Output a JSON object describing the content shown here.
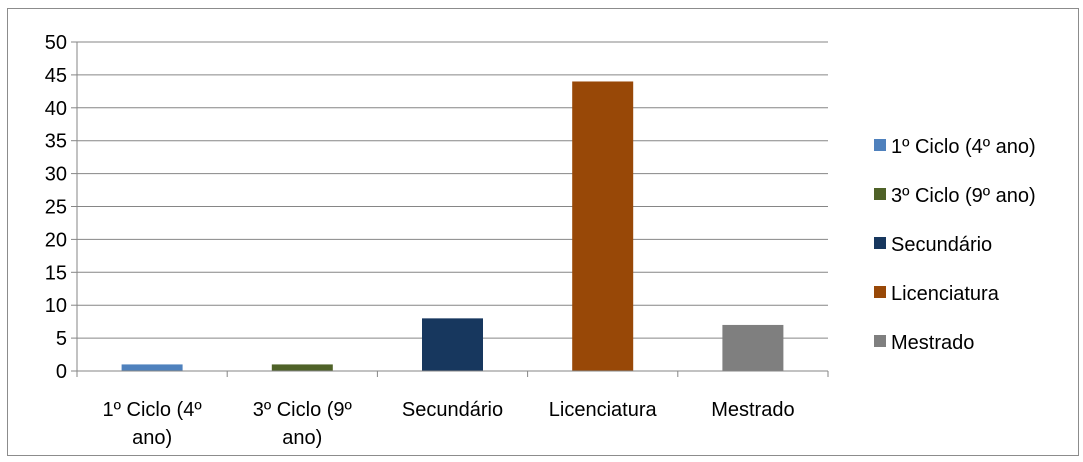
{
  "chart_data": {
    "type": "bar",
    "categories": [
      [
        "1º Ciclo (4º",
        "ano)"
      ],
      [
        "3º Ciclo (9º",
        "ano)"
      ],
      [
        "Secundário"
      ],
      [
        "Licenciatura"
      ],
      [
        "Mestrado"
      ]
    ],
    "values": [
      1,
      1,
      8,
      44,
      7
    ],
    "ylim": [
      0,
      50
    ],
    "ytick_step": 5,
    "yticks": [
      "0",
      "5",
      "10",
      "15",
      "20",
      "25",
      "30",
      "35",
      "40",
      "45",
      "50"
    ],
    "grid": true,
    "legend_position": "right",
    "legend": [
      "1º Ciclo (4º ano)",
      "3º Ciclo (9º ano)",
      "Secundário",
      "Licenciatura",
      "Mestrado"
    ],
    "colors": [
      "#4f81bd",
      "#4f6228",
      "#17375e",
      "#984807",
      "#7f7f7f"
    ],
    "title": "",
    "xlabel": "",
    "ylabel": ""
  }
}
